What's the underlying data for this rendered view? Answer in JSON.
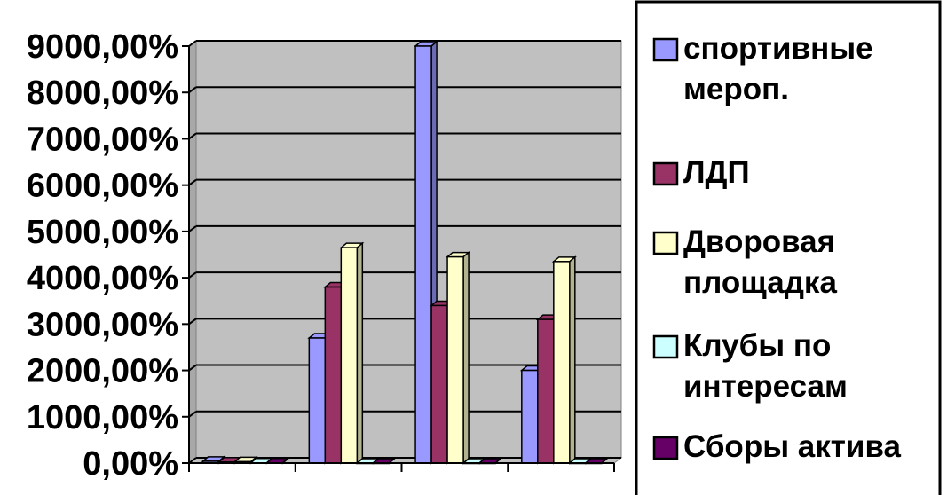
{
  "chart_data": {
    "type": "bar",
    "categories": [
      "",
      "",
      "",
      ""
    ],
    "ylim": [
      0,
      9000
    ],
    "y_tick_labels": [
      "0,00%",
      "1000,00%",
      "2000,00%",
      "3000,00%",
      "4000,00%",
      "5000,00%",
      "6000,00%",
      "7000,00%",
      "8000,00%",
      "9000,00%"
    ],
    "y_ticks": [
      0,
      1000,
      2000,
      3000,
      4000,
      5000,
      6000,
      7000,
      8000,
      9000
    ],
    "grid": true,
    "plot_background": "#c0c0c0",
    "legend_position": "right",
    "series": [
      {
        "name": "спортивные мероп.",
        "legend_lines": [
          "спортивные",
          "мероп."
        ],
        "color": "#9999ff",
        "values": [
          40,
          2700,
          9000,
          2000
        ]
      },
      {
        "name": "ЛДП",
        "legend_lines": [
          "ЛДП"
        ],
        "color": "#993366",
        "values": [
          25,
          3800,
          3400,
          3100
        ]
      },
      {
        "name": "Дворовая площадка",
        "legend_lines": [
          "Дворовая",
          "площадка"
        ],
        "color": "#ffffcc",
        "values": [
          30,
          4650,
          4450,
          4350
        ]
      },
      {
        "name": "Клубы по интересам",
        "legend_lines": [
          "Клубы по",
          "интересам"
        ],
        "color": "#ccffff",
        "values": [
          5,
          0,
          0,
          0
        ]
      },
      {
        "name": "Сборы актива",
        "legend_lines": [
          "Сборы актива"
        ],
        "color": "#660066",
        "values": [
          5,
          0,
          0,
          0
        ]
      }
    ]
  }
}
